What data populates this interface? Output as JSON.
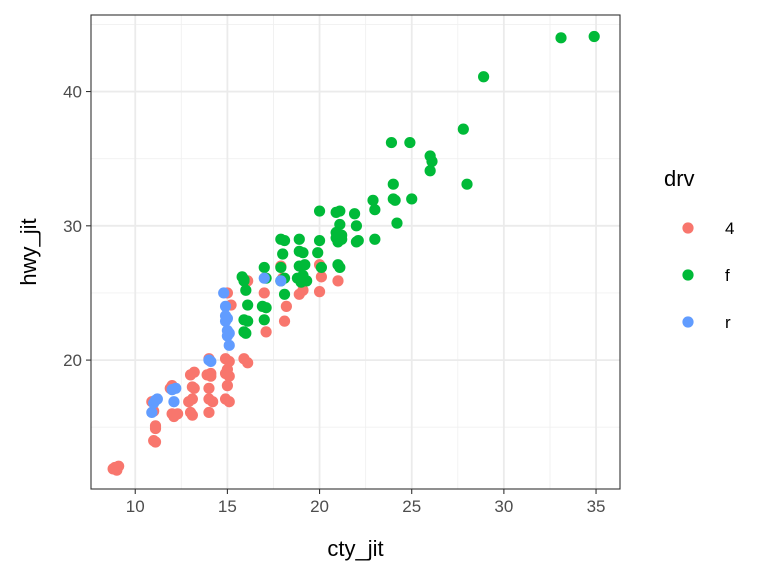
{
  "chart_data": {
    "type": "scatter",
    "xlabel": "cty_jit",
    "ylabel": "hwy_jit",
    "xlim": [
      7.6,
      36.3
    ],
    "ylim": [
      10.4,
      45.7
    ],
    "x_ticks": [
      10,
      15,
      20,
      25,
      30,
      35
    ],
    "y_ticks": [
      20,
      30,
      40
    ],
    "grid": true,
    "legend": {
      "title": "drv",
      "position": "right"
    },
    "series": [
      {
        "name": "4",
        "color": "#F8766D",
        "points": [
          [
            8.9,
            12.0
          ],
          [
            9.0,
            11.8
          ],
          [
            9.1,
            12.1
          ],
          [
            8.8,
            11.9
          ],
          [
            10.9,
            16.9
          ],
          [
            11.0,
            16.2
          ],
          [
            11.1,
            15.1
          ],
          [
            11.0,
            14.0
          ],
          [
            11.1,
            14.9
          ],
          [
            11.1,
            13.9
          ],
          [
            12.0,
            18.1
          ],
          [
            11.9,
            17.9
          ],
          [
            12.0,
            16.0
          ],
          [
            12.1,
            15.8
          ],
          [
            12.3,
            16.0
          ],
          [
            13.0,
            18.9
          ],
          [
            13.2,
            19.1
          ],
          [
            13.1,
            18.0
          ],
          [
            13.2,
            17.9
          ],
          [
            13.1,
            17.1
          ],
          [
            12.9,
            16.9
          ],
          [
            13.0,
            16.1
          ],
          [
            13.1,
            15.9
          ],
          [
            14.0,
            20.1
          ],
          [
            13.9,
            18.9
          ],
          [
            14.1,
            18.8
          ],
          [
            14.0,
            17.9
          ],
          [
            14.0,
            17.1
          ],
          [
            14.2,
            16.9
          ],
          [
            14.0,
            16.1
          ],
          [
            14.1,
            19.0
          ],
          [
            15.0,
            25.0
          ],
          [
            15.2,
            24.1
          ],
          [
            14.9,
            20.1
          ],
          [
            15.1,
            19.9
          ],
          [
            14.9,
            19.0
          ],
          [
            15.1,
            18.8
          ],
          [
            15.0,
            18.1
          ],
          [
            14.9,
            17.1
          ],
          [
            15.1,
            16.9
          ],
          [
            15.0,
            19.3
          ],
          [
            15.9,
            20.1
          ],
          [
            16.1,
            19.8
          ],
          [
            16.1,
            25.9
          ],
          [
            17.0,
            25.0
          ],
          [
            17.1,
            22.1
          ],
          [
            17.9,
            27.0
          ],
          [
            18.0,
            26.1
          ],
          [
            18.2,
            24.0
          ],
          [
            18.1,
            22.9
          ],
          [
            19.0,
            25.9
          ],
          [
            19.1,
            25.2
          ],
          [
            18.9,
            24.9
          ],
          [
            20.0,
            27.1
          ],
          [
            20.1,
            26.2
          ],
          [
            20.0,
            25.1
          ],
          [
            21.0,
            25.9
          ]
        ]
      },
      {
        "name": "f",
        "color": "#00BA38",
        "points": [
          [
            15.8,
            26.2
          ],
          [
            15.9,
            25.9
          ],
          [
            16.0,
            25.2
          ],
          [
            16.1,
            24.1
          ],
          [
            15.9,
            23.0
          ],
          [
            16.1,
            22.9
          ],
          [
            15.9,
            22.1
          ],
          [
            16.0,
            22.0
          ],
          [
            15.9,
            26.0
          ],
          [
            17.0,
            26.9
          ],
          [
            17.1,
            26.1
          ],
          [
            16.9,
            24.0
          ],
          [
            17.1,
            23.9
          ],
          [
            17.0,
            23.0
          ],
          [
            17.9,
            29.0
          ],
          [
            18.1,
            28.9
          ],
          [
            18.0,
            27.9
          ],
          [
            17.9,
            26.9
          ],
          [
            18.1,
            26.1
          ],
          [
            17.9,
            25.9
          ],
          [
            18.1,
            24.9
          ],
          [
            18.9,
            29.0
          ],
          [
            18.9,
            28.1
          ],
          [
            19.1,
            28.0
          ],
          [
            18.9,
            27.0
          ],
          [
            19.1,
            26.3
          ],
          [
            18.8,
            26.1
          ],
          [
            19.0,
            25.8
          ],
          [
            19.3,
            25.9
          ],
          [
            19.2,
            27.1
          ],
          [
            20.0,
            31.1
          ],
          [
            20.0,
            28.9
          ],
          [
            19.9,
            28.0
          ],
          [
            20.1,
            26.9
          ],
          [
            20.9,
            31.0
          ],
          [
            21.1,
            31.1
          ],
          [
            21.1,
            30.1
          ],
          [
            20.9,
            29.1
          ],
          [
            21.0,
            28.9
          ],
          [
            21.2,
            29.0
          ],
          [
            21.0,
            28.8
          ],
          [
            21.2,
            29.3
          ],
          [
            21.0,
            27.1
          ],
          [
            21.1,
            26.9
          ],
          [
            20.9,
            29.5
          ],
          [
            21.9,
            30.9
          ],
          [
            22.0,
            30.0
          ],
          [
            22.1,
            28.9
          ],
          [
            22.0,
            28.8
          ],
          [
            22.9,
            31.9
          ],
          [
            23.0,
            31.2
          ],
          [
            23.0,
            29.0
          ],
          [
            23.9,
            36.2
          ],
          [
            24.0,
            33.1
          ],
          [
            24.1,
            31.9
          ],
          [
            24.2,
            30.2
          ],
          [
            24.0,
            32.0
          ],
          [
            24.9,
            36.2
          ],
          [
            25.0,
            32.0
          ],
          [
            26.0,
            35.2
          ],
          [
            26.1,
            34.8
          ],
          [
            26.0,
            34.1
          ],
          [
            27.8,
            37.2
          ],
          [
            28.0,
            33.1
          ],
          [
            28.9,
            41.1
          ],
          [
            33.1,
            44.0
          ],
          [
            34.9,
            44.1
          ]
        ]
      },
      {
        "name": "r",
        "color": "#619CFF",
        "points": [
          [
            10.9,
            16.1
          ],
          [
            11.0,
            16.8
          ],
          [
            11.1,
            17.0
          ],
          [
            11.2,
            17.1
          ],
          [
            12.1,
            16.9
          ],
          [
            12.2,
            17.9
          ],
          [
            12.0,
            17.8
          ],
          [
            14.0,
            20.0
          ],
          [
            14.1,
            19.9
          ],
          [
            14.8,
            25.0
          ],
          [
            14.9,
            24.0
          ],
          [
            15.0,
            23.1
          ],
          [
            14.9,
            22.9
          ],
          [
            15.1,
            22.0
          ],
          [
            15.0,
            21.8
          ],
          [
            15.1,
            21.1
          ],
          [
            15.0,
            22.2
          ],
          [
            14.9,
            23.3
          ],
          [
            17.0,
            26.1
          ],
          [
            17.9,
            25.9
          ]
        ]
      }
    ]
  }
}
